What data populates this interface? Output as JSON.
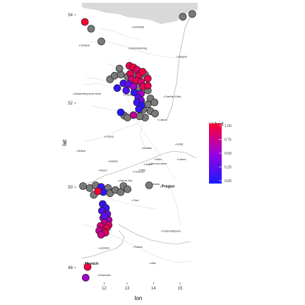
{
  "chart_data": {
    "type": "scatter",
    "title": "",
    "xlabel": "lon",
    "ylabel": "lat",
    "xlim": [
      11.3,
      15.8
    ],
    "ylim": [
      47.7,
      54.7
    ],
    "x_ticks": [
      "12",
      "13",
      "14",
      "15"
    ],
    "y_ticks": [
      "48",
      "50",
      "52",
      "54"
    ],
    "legend": {
      "title_lines": [
        "Hybrid",
        "index"
      ],
      "ticks": [
        "1.00",
        "0.75",
        "0.50",
        "0.25",
        "0.00"
      ],
      "low_color": "#1a1aff",
      "mid_color": "#9a00e0",
      "high_color": "#ff0030",
      "na_color": "#7a7a7a",
      "placement": "right"
    },
    "city_labels": [
      {
        "name": "Greifswald",
        "lon": 13.38,
        "lat": 54.09,
        "big": false
      },
      {
        "name": "Neubrandenburg",
        "lon": 13.26,
        "lat": 53.56,
        "big": false
      },
      {
        "name": "Schwerin",
        "lon": 11.42,
        "lat": 53.63,
        "big": false
      },
      {
        "name": "Stargard",
        "lon": 15.04,
        "lat": 53.34,
        "big": false
      },
      {
        "name": "Brandenburg an der Havel",
        "lon": 11.2,
        "lat": 52.41,
        "big": false
      },
      {
        "name": "Potsdam",
        "lon": 13.06,
        "lat": 52.39,
        "big": false
      },
      {
        "name": "Frankfurt (Oder)",
        "lon": 14.55,
        "lat": 52.34,
        "big": false
      },
      {
        "name": "Cottbus",
        "lon": 14.33,
        "lat": 51.76,
        "big": false
      },
      {
        "name": "Leipzig",
        "lon": 12.37,
        "lat": 51.34,
        "big": false
      },
      {
        "name": "Dresden",
        "lon": 13.74,
        "lat": 51.05,
        "big": false
      },
      {
        "name": "Görlitz",
        "lon": 14.99,
        "lat": 51.15,
        "big": false
      },
      {
        "name": "Weimar",
        "lon": 11.32,
        "lat": 50.98,
        "big": false
      },
      {
        "name": "Zwickau",
        "lon": 12.5,
        "lat": 50.72,
        "big": false
      },
      {
        "name": "Teplice",
        "lon": 13.82,
        "lat": 50.64,
        "big": false
      },
      {
        "name": "Děčín",
        "lon": 14.21,
        "lat": 50.77,
        "big": false
      },
      {
        "name": "Liberec",
        "lon": 15.06,
        "lat": 50.77,
        "big": false
      },
      {
        "name": "Chomutov",
        "lon": 13.42,
        "lat": 50.46,
        "big": false
      },
      {
        "name": "Most",
        "lon": 13.64,
        "lat": 50.5,
        "big": false
      },
      {
        "name": "Ústí nad Labem",
        "lon": 14.03,
        "lat": 50.66,
        "big": false
      },
      {
        "name": "Plauen",
        "lon": 12.14,
        "lat": 50.49,
        "big": false
      },
      {
        "name": "Karlovy Vary",
        "lon": 12.87,
        "lat": 50.23,
        "big": false
      },
      {
        "name": "Kladno",
        "lon": 14.1,
        "lat": 50.15,
        "big": false
      },
      {
        "name": "Prague",
        "lon": 14.42,
        "lat": 50.08,
        "big": true
      },
      {
        "name": "Plzeň",
        "lon": 13.38,
        "lat": 49.74,
        "big": false
      },
      {
        "name": "Regensburg",
        "lon": 12.1,
        "lat": 49.02,
        "big": false
      },
      {
        "name": "České Budějovice",
        "lon": 14.47,
        "lat": 48.97,
        "big": false
      },
      {
        "name": "Landshut",
        "lon": 12.15,
        "lat": 48.54,
        "big": false
      },
      {
        "name": "Passau",
        "lon": 13.43,
        "lat": 48.57,
        "big": false
      },
      {
        "name": "Munich",
        "lon": 11.58,
        "lat": 48.14,
        "big": true
      },
      {
        "name": "Wels",
        "lon": 14.03,
        "lat": 48.16,
        "big": false
      },
      {
        "name": "Rosenheim",
        "lon": 12.12,
        "lat": 47.86,
        "big": false
      }
    ],
    "points": [
      {
        "lon": 11.62,
        "lat": 54.22,
        "h": 1.0
      },
      {
        "lon": 11.85,
        "lat": 54.05,
        "h": null
      },
      {
        "lon": 12.23,
        "lat": 53.73,
        "h": null
      },
      {
        "lon": 15.25,
        "lat": 54.35,
        "h": null
      },
      {
        "lon": 15.6,
        "lat": 54.42,
        "h": null
      },
      {
        "lon": 13.27,
        "lat": 53.12,
        "h": 0.9
      },
      {
        "lon": 13.42,
        "lat": 53.08,
        "h": 0.95
      },
      {
        "lon": 13.55,
        "lat": 53.02,
        "h": 0.85
      },
      {
        "lon": 13.3,
        "lat": 52.92,
        "h": 0.9
      },
      {
        "lon": 13.48,
        "lat": 52.88,
        "h": null
      },
      {
        "lon": 13.62,
        "lat": 52.88,
        "h": 0.88
      },
      {
        "lon": 13.76,
        "lat": 52.97,
        "h": 0.95
      },
      {
        "lon": 13.85,
        "lat": 52.9,
        "h": null
      },
      {
        "lon": 13.2,
        "lat": 52.85,
        "h": null
      },
      {
        "lon": 13.35,
        "lat": 52.78,
        "h": 0.8
      },
      {
        "lon": 13.55,
        "lat": 52.75,
        "h": 0.95
      },
      {
        "lon": 13.7,
        "lat": 52.72,
        "h": 0.82
      },
      {
        "lon": 13.95,
        "lat": 52.8,
        "h": 0.9
      },
      {
        "lon": 13.05,
        "lat": 52.68,
        "h": 0.15
      },
      {
        "lon": 13.24,
        "lat": 52.66,
        "h": 0.3
      },
      {
        "lon": 13.42,
        "lat": 52.6,
        "h": 0.55
      },
      {
        "lon": 13.6,
        "lat": 52.58,
        "h": null
      },
      {
        "lon": 13.78,
        "lat": 52.6,
        "h": 0.88
      },
      {
        "lon": 13.95,
        "lat": 52.62,
        "h": 0.92
      },
      {
        "lon": 12.82,
        "lat": 52.56,
        "h": 0.1
      },
      {
        "lon": 13.15,
        "lat": 52.5,
        "h": 0.2
      },
      {
        "lon": 13.45,
        "lat": 52.45,
        "h": 0.1
      },
      {
        "lon": 13.7,
        "lat": 52.42,
        "h": 0.6
      },
      {
        "lon": 13.6,
        "lat": 52.32,
        "h": 0.25
      },
      {
        "lon": 13.7,
        "lat": 52.25,
        "h": 0.35
      },
      {
        "lon": 13.55,
        "lat": 52.2,
        "h": 0.15
      },
      {
        "lon": 13.72,
        "lat": 52.12,
        "h": 0.05
      },
      {
        "lon": 13.62,
        "lat": 52.03,
        "h": 0.1
      },
      {
        "lon": 13.78,
        "lat": 52.02,
        "h": null
      },
      {
        "lon": 12.55,
        "lat": 52.78,
        "h": null
      },
      {
        "lon": 12.72,
        "lat": 52.87,
        "h": null
      },
      {
        "lon": 12.95,
        "lat": 52.9,
        "h": null
      },
      {
        "lon": 12.9,
        "lat": 53.05,
        "h": null
      },
      {
        "lon": 13.95,
        "lat": 52.5,
        "h": null
      },
      {
        "lon": 14.05,
        "lat": 52.3,
        "h": null
      },
      {
        "lon": 14.2,
        "lat": 52.2,
        "h": null
      },
      {
        "lon": 13.95,
        "lat": 52.15,
        "h": null
      },
      {
        "lon": 14.05,
        "lat": 51.98,
        "h": null
      },
      {
        "lon": 14.22,
        "lat": 51.92,
        "h": null
      },
      {
        "lon": 13.85,
        "lat": 51.82,
        "h": null
      },
      {
        "lon": 12.95,
        "lat": 51.95,
        "h": 0.05
      },
      {
        "lon": 13.08,
        "lat": 51.87,
        "h": null
      },
      {
        "lon": 13.2,
        "lat": 51.82,
        "h": null
      },
      {
        "lon": 13.42,
        "lat": 51.88,
        "h": 0.7
      },
      {
        "lon": 13.65,
        "lat": 51.85,
        "h": null
      },
      {
        "lon": 11.55,
        "lat": 50.1,
        "h": null
      },
      {
        "lon": 11.8,
        "lat": 50.05,
        "h": null
      },
      {
        "lon": 12.02,
        "lat": 50.12,
        "h": null
      },
      {
        "lon": 12.22,
        "lat": 50.08,
        "h": 0.15
      },
      {
        "lon": 12.3,
        "lat": 49.95,
        "h": 0.05
      },
      {
        "lon": 12.48,
        "lat": 50.05,
        "h": null
      },
      {
        "lon": 12.55,
        "lat": 49.92,
        "h": null
      },
      {
        "lon": 12.75,
        "lat": 50.0,
        "h": null
      },
      {
        "lon": 12.95,
        "lat": 49.95,
        "h": null
      },
      {
        "lon": 13.05,
        "lat": 50.1,
        "h": null
      },
      {
        "lon": 13.2,
        "lat": 50.02,
        "h": null
      },
      {
        "lon": 11.95,
        "lat": 49.88,
        "h": null
      },
      {
        "lon": 12.1,
        "lat": 49.97,
        "h": 1.0
      },
      {
        "lon": 14.0,
        "lat": 50.12,
        "h": null
      },
      {
        "lon": 12.28,
        "lat": 49.65,
        "h": 0.1
      },
      {
        "lon": 12.4,
        "lat": 49.55,
        "h": 0.15
      },
      {
        "lon": 12.25,
        "lat": 49.48,
        "h": 0.2
      },
      {
        "lon": 12.45,
        "lat": 49.4,
        "h": 0.35
      },
      {
        "lon": 12.3,
        "lat": 49.3,
        "h": 0.5
      },
      {
        "lon": 12.5,
        "lat": 49.25,
        "h": 0.6
      },
      {
        "lon": 12.35,
        "lat": 49.18,
        "h": 0.7
      },
      {
        "lon": 12.5,
        "lat": 49.12,
        "h": 0.85
      },
      {
        "lon": 12.2,
        "lat": 49.1,
        "h": 0.8
      },
      {
        "lon": 12.42,
        "lat": 49.05,
        "h": 0.9
      },
      {
        "lon": 12.3,
        "lat": 48.97,
        "h": 0.95
      },
      {
        "lon": 12.15,
        "lat": 48.98,
        "h": 0.7
      },
      {
        "lon": 12.38,
        "lat": 48.93,
        "h": 0.85
      },
      {
        "lon": 12.22,
        "lat": 48.88,
        "h": 0.75
      },
      {
        "lon": 12.35,
        "lat": 49.35,
        "h": 0.25
      },
      {
        "lon": 11.72,
        "lat": 48.07,
        "h": 0.95
      },
      {
        "lon": 11.65,
        "lat": 47.8,
        "h": 0.55
      }
    ]
  }
}
